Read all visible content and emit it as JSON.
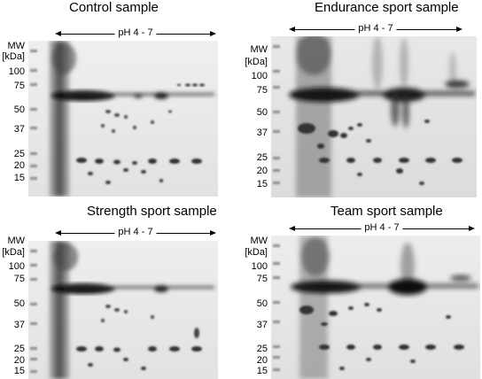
{
  "panels": [
    {
      "title": "Control sample",
      "mw_label": "MW",
      "mw_unit": "[kDa]",
      "ph_label": "pH 4 - 7",
      "markers": [
        "100",
        "75",
        "50",
        "37",
        "25",
        "20",
        "15"
      ]
    },
    {
      "title": "Endurance sport sample",
      "mw_label": "MW",
      "mw_unit": "[kDa]",
      "ph_label": "pH 4 - 7",
      "markers": [
        "100",
        "75",
        "50",
        "37",
        "25",
        "20",
        "15"
      ]
    },
    {
      "title": "Strength sport sample",
      "mw_label": "MW",
      "mw_unit": "[kDa]",
      "ph_label": "pH 4 - 7",
      "markers": [
        "100",
        "75",
        "50",
        "37",
        "25",
        "20",
        "15"
      ]
    },
    {
      "title": "Team sport sample",
      "mw_label": "MW",
      "mw_unit": "[kDa]",
      "ph_label": "pH 4 - 7",
      "markers": [
        "100",
        "75",
        "50",
        "37",
        "25",
        "20",
        "15"
      ]
    }
  ]
}
